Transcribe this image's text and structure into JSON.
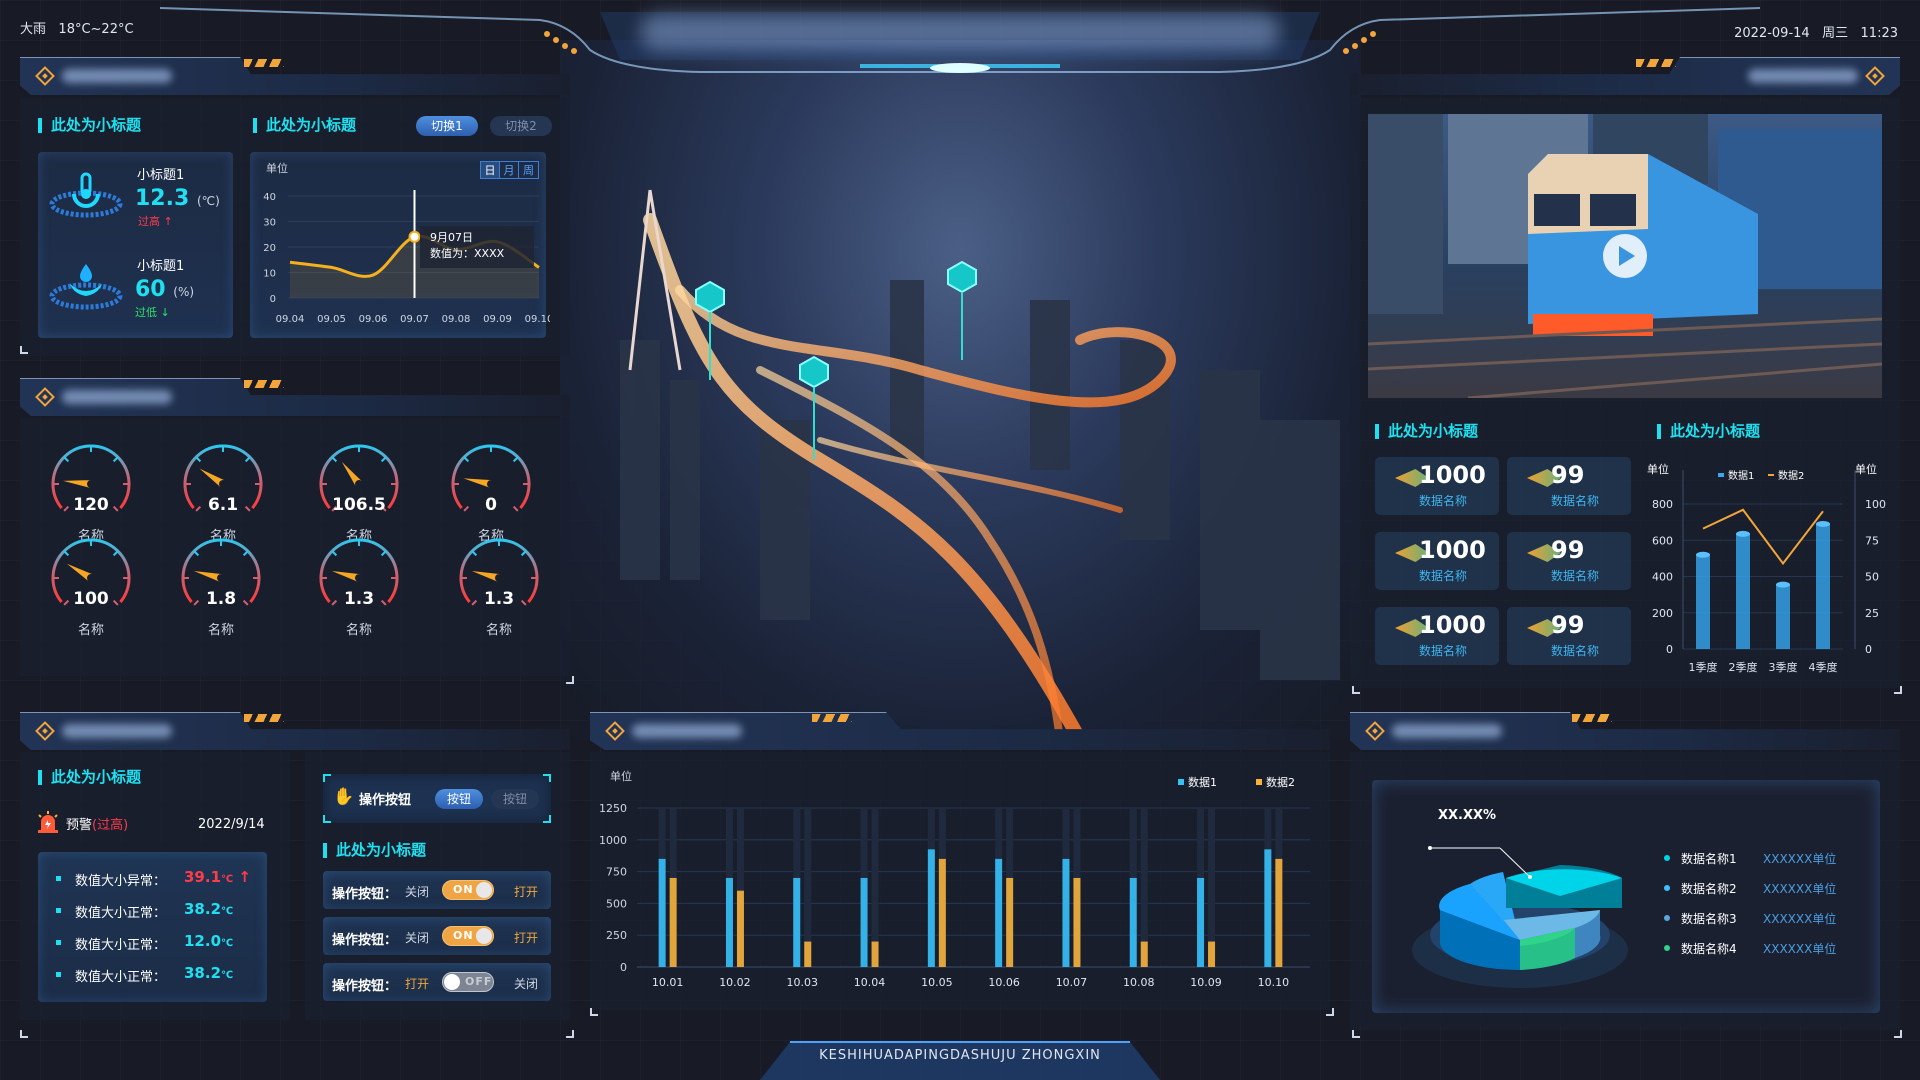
{
  "top": {
    "weather": "大雨",
    "temperature": "18°C~22°C",
    "date": "2022-09-14",
    "weekday": "周三",
    "time": "11:23"
  },
  "footer": {
    "text": "KESHIHUADAPINGDASHUJU ZHONGXIN"
  },
  "colors": {
    "accent": "#1fe0f0",
    "orange": "#f2a53a",
    "alert": "#ff3b4a",
    "ok": "#2fe06a",
    "blue": "#36a8f0"
  },
  "panel1": {
    "sensors_title": "此处为小标题",
    "chart_title": "此处为小标题",
    "switch": [
      {
        "label": "切换1",
        "active": true
      },
      {
        "label": "切换2",
        "active": false
      }
    ],
    "sensors": [
      {
        "icon": "thermometer-icon",
        "label": "小标题1",
        "value": "12.3",
        "unit": "(℃)",
        "status": "过高",
        "status_dir": "up"
      },
      {
        "icon": "water-drop-icon",
        "label": "小标题1",
        "value": "60",
        "unit": "(%)",
        "status": "过低",
        "status_dir": "down"
      }
    ],
    "range_tabs": [
      "日",
      "月",
      "周"
    ],
    "tooltip": {
      "date": "9月07日",
      "value": "数值为：XXXX"
    }
  },
  "panel2": {
    "gauges": [
      {
        "value": "120",
        "label": "名称",
        "needle": 0.19
      },
      {
        "value": "6.1",
        "label": "名称",
        "needle": 0.29
      },
      {
        "value": "106.5",
        "label": "名称",
        "needle": 0.36
      },
      {
        "value": "0",
        "label": "名称",
        "needle": 0.21
      },
      {
        "value": "100",
        "label": "名称",
        "needle": 0.28
      },
      {
        "value": "1.8",
        "label": "名称",
        "needle": 0.22
      },
      {
        "value": "1.3",
        "label": "名称",
        "needle": 0.22
      },
      {
        "value": "1.3",
        "label": "名称",
        "needle": 0.22
      }
    ]
  },
  "panel3": {
    "title": "此处为小标题",
    "warning": {
      "label": "预警",
      "level": "(过高)",
      "date": "2022/9/14"
    },
    "readings": [
      {
        "label": "数值大小异常：",
        "value": "39.1",
        "unit": "℃",
        "abnormal": true
      },
      {
        "label": "数值大小正常：",
        "value": "38.2",
        "unit": "℃",
        "abnormal": false
      },
      {
        "label": "数值大小正常：",
        "value": "12.0",
        "unit": "℃",
        "abnormal": false
      },
      {
        "label": "数值大小正常：",
        "value": "38.2",
        "unit": "℃",
        "abnormal": false
      }
    ],
    "op_title": "操作按钮",
    "op_buttons": [
      {
        "label": "按钮",
        "active": true
      },
      {
        "label": "按钮",
        "active": false
      }
    ],
    "toggle_title": "此处为小标题",
    "toggles": [
      {
        "label": "操作按钮：",
        "left": "关闭",
        "state": "ON",
        "right": "打开",
        "on": true
      },
      {
        "label": "操作按钮：",
        "left": "关闭",
        "state": "ON",
        "right": "打开",
        "on": true
      },
      {
        "label": "操作按钮：",
        "left": "打开",
        "state": "OFF",
        "right": "关闭",
        "on": false
      }
    ]
  },
  "right": {
    "cards_title": "此处为小标题",
    "chart_title": "此处为小标题",
    "cards": [
      {
        "value": "1000",
        "name": "数据名称"
      },
      {
        "value": "99",
        "name": "数据名称"
      },
      {
        "value": "1000",
        "name": "数据名称"
      },
      {
        "value": "99",
        "name": "数据名称"
      },
      {
        "value": "1000",
        "name": "数据名称"
      },
      {
        "value": "99",
        "name": "数据名称"
      }
    ]
  },
  "pie": {
    "label": "XX.XX%",
    "legend": [
      {
        "name": "数据名称1",
        "value": "XXXXXX单位",
        "color": "#00d4e8"
      },
      {
        "name": "数据名称2",
        "value": "XXXXXX单位",
        "color": "#3fc0ff"
      },
      {
        "name": "数据名称3",
        "value": "XXXXXX单位",
        "color": "#5aa8e0"
      },
      {
        "name": "数据名称4",
        "value": "XXXXXX单位",
        "color": "#2fd38a"
      }
    ]
  },
  "chart_data": [
    {
      "type": "line",
      "ylabel": "单位",
      "categories": [
        "09.04",
        "09.05",
        "09.06",
        "09.07",
        "09.08",
        "09.09",
        "09.10"
      ],
      "values": [
        14,
        12,
        9,
        24,
        19,
        22,
        12
      ],
      "ylim": [
        0,
        40
      ],
      "yticks": [
        0,
        10,
        20,
        30,
        40
      ],
      "color": "#f5b01e",
      "highlight": "09.07"
    },
    {
      "type": "bar",
      "ylabel": "单位",
      "categories": [
        "10.01",
        "10.02",
        "10.03",
        "10.04",
        "10.05",
        "10.06",
        "10.07",
        "10.08",
        "10.09",
        "10.10"
      ],
      "ylim": [
        0,
        1250
      ],
      "yticks": [
        0,
        250,
        500,
        750,
        1000,
        1250
      ],
      "series": [
        {
          "name": "数据1",
          "color": "#36c0f8",
          "values": [
            850,
            700,
            700,
            700,
            925,
            850,
            850,
            700,
            700,
            925
          ]
        },
        {
          "name": "数据2",
          "color": "#f7b23c",
          "values": [
            700,
            600,
            200,
            200,
            850,
            700,
            700,
            200,
            200,
            850
          ]
        }
      ],
      "legend": "top-right",
      "grid": true
    },
    {
      "type": "bar+line",
      "ylabel_left": "单位",
      "ylabel_right": "单位",
      "categories": [
        "1季度",
        "2季度",
        "3季度",
        "4季度"
      ],
      "ylim_left": [
        0,
        800
      ],
      "yticks_left": [
        0,
        200,
        400,
        600,
        800
      ],
      "ylim_right": [
        0,
        100
      ],
      "yticks_right": [
        0,
        25,
        50,
        75,
        100
      ],
      "series": [
        {
          "name": "数据1",
          "type": "bar",
          "color": "#36a8f0",
          "values": [
            520,
            635,
            355,
            690
          ]
        },
        {
          "name": "数据2",
          "type": "line",
          "axis": "right",
          "color": "#f2a53a",
          "values": [
            83,
            96,
            59,
            95
          ]
        }
      ],
      "legend": "top"
    }
  ]
}
